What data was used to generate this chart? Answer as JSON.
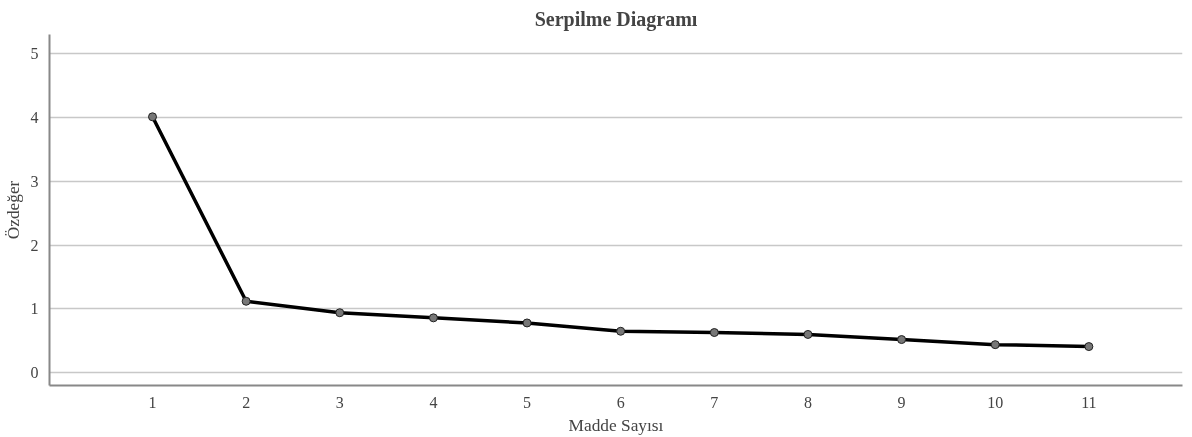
{
  "chart_data": {
    "type": "line",
    "title": "Serpilme Diagramı",
    "xlabel": "Madde Sayısı",
    "ylabel": "Özdeğer",
    "x": [
      1,
      2,
      3,
      4,
      5,
      6,
      7,
      8,
      9,
      10,
      11
    ],
    "series": [
      {
        "color": "#000000",
        "values": [
          4.01,
          1.12,
          0.94,
          0.86,
          0.78,
          0.65,
          0.63,
          0.6,
          0.52,
          0.44,
          0.41
        ]
      }
    ],
    "xlim": [
      -0.1,
      12
    ],
    "xticks": [
      1,
      2,
      3,
      4,
      5,
      6,
      7,
      8,
      9,
      10,
      11
    ],
    "ylim": [
      -0.2,
      5.3
    ],
    "yticks": [
      0,
      1,
      2,
      3,
      4,
      5
    ],
    "grid": "y",
    "marker": "circle",
    "line_style": "solid"
  }
}
